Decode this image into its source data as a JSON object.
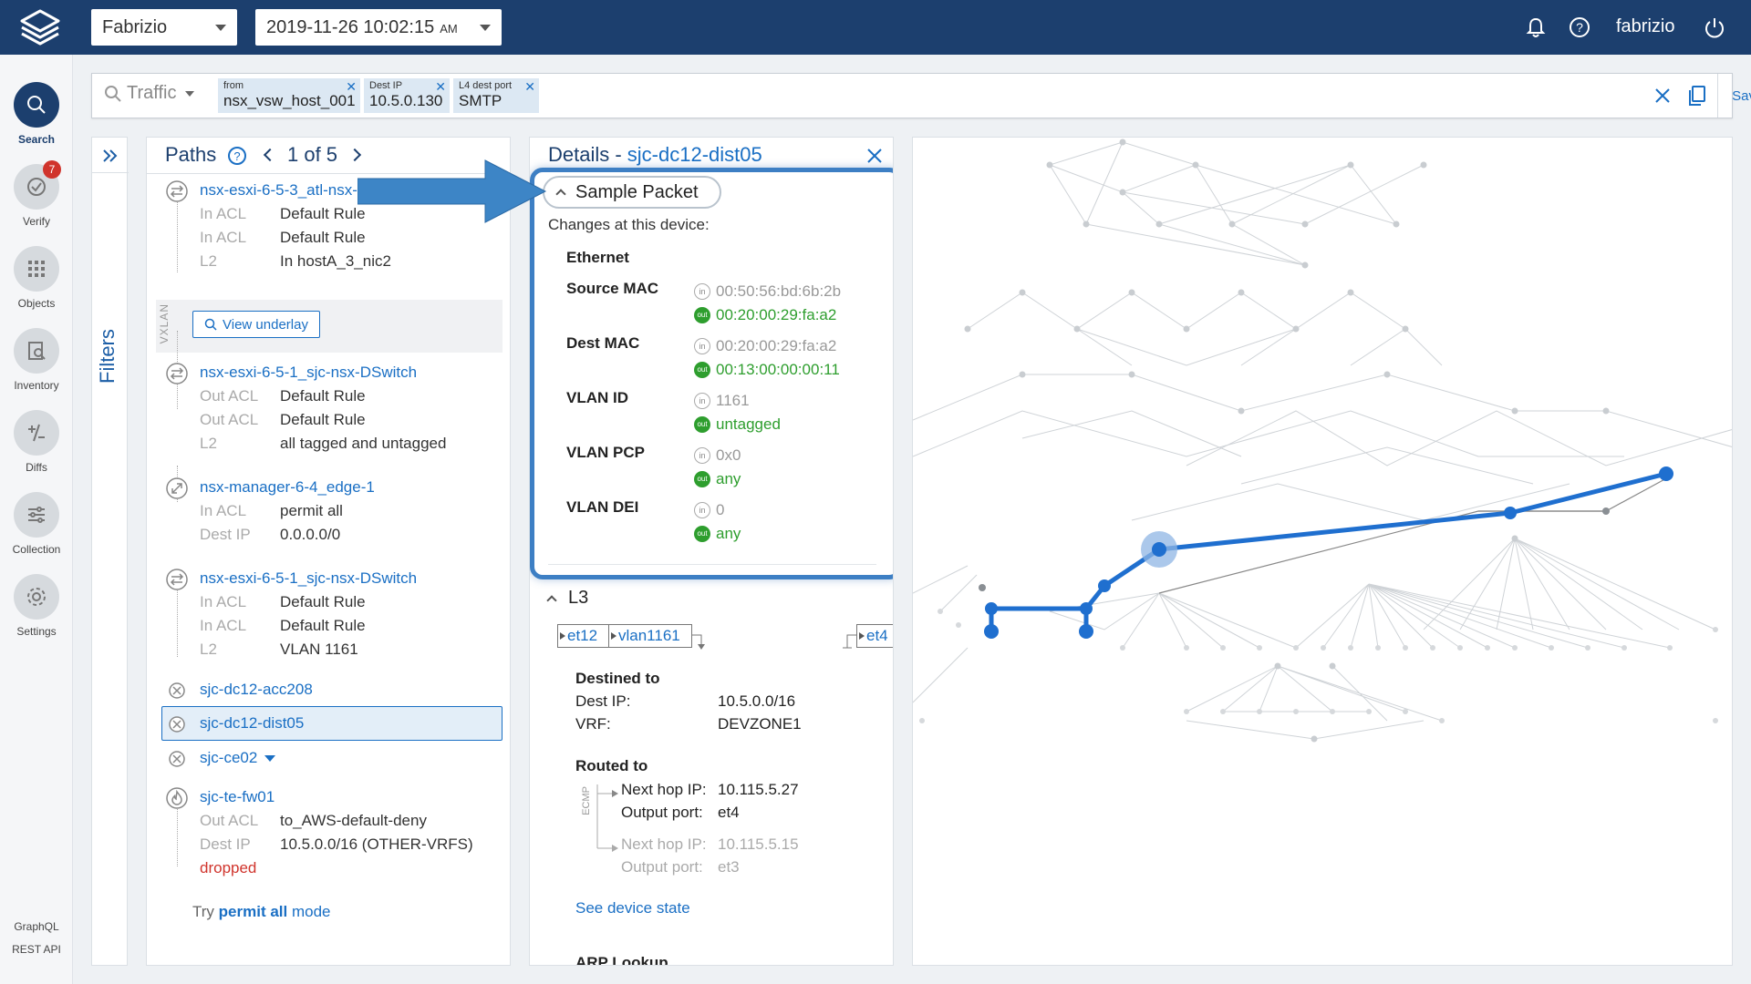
{
  "topbar": {
    "network": "Fabrizio",
    "datetime": "2019-11-26  10:02:15",
    "ampm": "AM",
    "user": "fabrizio"
  },
  "nav": {
    "items": [
      {
        "label": "Search",
        "icon": "search-icon"
      },
      {
        "label": "Verify",
        "icon": "check-icon",
        "badge": "7"
      },
      {
        "label": "Objects",
        "icon": "grid-icon"
      },
      {
        "label": "Inventory",
        "icon": "inventory-icon"
      },
      {
        "label": "Diffs",
        "icon": "diff-icon"
      },
      {
        "label": "Collection",
        "icon": "sliders-icon"
      },
      {
        "label": "Settings",
        "icon": "gear-icon"
      }
    ],
    "footer": [
      "GraphQL",
      "REST API"
    ]
  },
  "search": {
    "type": "Traffic",
    "chips": [
      {
        "key": "from",
        "value": "nsx_vsw_host_001"
      },
      {
        "key": "Dest IP",
        "value": "10.5.0.130"
      },
      {
        "key": "L4 dest port",
        "value": "SMTP"
      }
    ],
    "save_label": "Save as..."
  },
  "filters": {
    "label": "Filters"
  },
  "paths": {
    "title": "Paths",
    "pager": "1 of 5",
    "hops": [
      {
        "name": "nsx-esxi-6-5-3_atl-nsx-DSwitch",
        "rows": [
          [
            "In ACL",
            "Default Rule"
          ],
          [
            "In ACL",
            "Default Rule"
          ],
          [
            "L2",
            "In hostA_3_nic2"
          ]
        ]
      },
      {
        "name": "nsx-esxi-6-5-1_sjc-nsx-DSwitch",
        "rows": [
          [
            "Out ACL",
            "Default Rule"
          ],
          [
            "Out ACL",
            "Default Rule"
          ],
          [
            "L2",
            "all tagged and untagged"
          ]
        ]
      },
      {
        "name": "nsx-manager-6-4_edge-1",
        "rows": [
          [
            "In ACL",
            "permit all"
          ],
          [
            "Dest IP",
            "0.0.0.0/0"
          ]
        ]
      },
      {
        "name": "nsx-esxi-6-5-1_sjc-nsx-DSwitch",
        "rows": [
          [
            "In ACL",
            "Default Rule"
          ],
          [
            "In ACL",
            "Default Rule"
          ],
          [
            "L2",
            "VLAN 1161"
          ]
        ]
      },
      {
        "name": "sjc-dc12-acc208",
        "rows": []
      },
      {
        "name": "sjc-dc12-dist05",
        "rows": []
      },
      {
        "name": "sjc-ce02",
        "rows": []
      },
      {
        "name": "sjc-te-fw01",
        "rows": [
          [
            "Out ACL",
            "to_AWS-default-deny"
          ],
          [
            "Dest IP",
            "10.5.0.0/16 (OTHER-VRFS)"
          ]
        ],
        "status": "dropped"
      }
    ],
    "underlay": {
      "tag": "VXLAN",
      "button": "View underlay"
    },
    "try": {
      "prefix": "Try",
      "mode": "permit all",
      "suffix": "mode"
    }
  },
  "details": {
    "title": "Details - ",
    "device": "sjc-dc12-dist05",
    "sample_packet": "Sample Packet",
    "changes": "Changes at this device:",
    "ethernet": "Ethernet",
    "fields": [
      {
        "label": "Source MAC",
        "in": "00:50:56:bd:6b:2b",
        "out": "00:20:00:29:fa:a2"
      },
      {
        "label": "Dest MAC",
        "in": "00:20:00:29:fa:a2",
        "out": "00:13:00:00:00:11"
      },
      {
        "label": "VLAN ID",
        "in": "1161",
        "out": "untagged"
      },
      {
        "label": "VLAN PCP",
        "in": "0x0",
        "out": "any"
      },
      {
        "label": "VLAN DEI",
        "in": "0",
        "out": "any"
      }
    ],
    "badge_in": "in",
    "badge_out": "out",
    "l3": "L3",
    "ports": [
      "et12",
      "vlan1161",
      "et4"
    ],
    "destined_title": "Destined to",
    "dest_ip_label": "Dest IP:",
    "dest_ip": "10.5.0.0/16",
    "vrf_label": "VRF:",
    "vrf": "DEVZONE1",
    "routed_title": "Routed to",
    "ecmp": "ECMP",
    "next_hops": [
      {
        "nh_label": "Next hop IP:",
        "nh": "10.115.5.27",
        "op_label": "Output port:",
        "op": "et4"
      },
      {
        "nh_label": "Next hop IP:",
        "nh": "10.115.5.15",
        "op_label": "Output port:",
        "op": "et3"
      }
    ],
    "see_device_state": "See device state",
    "arp": "ARP Lookup"
  },
  "colors": {
    "topbar": "#1c3f6e",
    "link": "#1a6fc4",
    "path": "#1f6fcf",
    "out_green": "#2e9e2e",
    "dropped": "#d0342c",
    "highlight": "#3d7fc4"
  }
}
